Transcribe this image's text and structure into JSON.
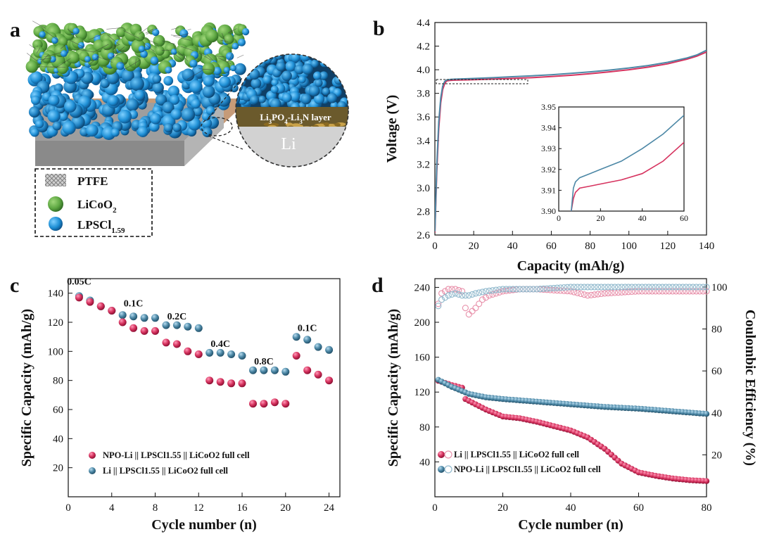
{
  "panels": {
    "a": {
      "letter": "a",
      "legend": [
        {
          "label": "PTFE",
          "sub": "",
          "icon": "ptfe-swatch"
        },
        {
          "label": "LiCoO",
          "sub": "2",
          "icon": "green-sphere"
        },
        {
          "label": "LPSCl",
          "sub": "1.59",
          "icon": "blue-sphere"
        }
      ],
      "inset_layer": {
        "p1": "Li",
        "s1": "3",
        "p2": "PO",
        "s2": "4",
        "p3": "-Li",
        "s3": "3",
        "p4": "N layer"
      },
      "inset_li": "Li",
      "colors": {
        "green": "#5fa843",
        "blue": "#1f90d6",
        "substrate": "#a8a8a8"
      }
    },
    "b": {
      "letter": "b"
    },
    "c": {
      "letter": "c"
    },
    "d": {
      "letter": "d"
    }
  },
  "chart_data": [
    {
      "id": "b",
      "type": "line",
      "xlabel": "Capacity (mAh/g)",
      "ylabel": "Voltage (V)",
      "xlim": [
        0,
        140
      ],
      "ylim": [
        2.6,
        4.4
      ],
      "xticks": [
        "0",
        "20",
        "40",
        "60",
        "80",
        "100",
        "120",
        "140"
      ],
      "yticks": [
        "2.6",
        "2.8",
        "3.0",
        "3.2",
        "3.4",
        "3.6",
        "3.8",
        "4.0",
        "4.2",
        "4.4"
      ],
      "series": [
        {
          "color": "#d6335f",
          "x": [
            0,
            1,
            2,
            3,
            4,
            5,
            6,
            8,
            10,
            20,
            30,
            40,
            50,
            60,
            70,
            80,
            90,
            100,
            110,
            120,
            130,
            135,
            140
          ],
          "y": [
            2.62,
            3.15,
            3.5,
            3.72,
            3.83,
            3.88,
            3.905,
            3.91,
            3.912,
            3.916,
            3.921,
            3.927,
            3.933,
            3.942,
            3.953,
            3.966,
            3.982,
            4.0,
            4.022,
            4.05,
            4.09,
            4.115,
            4.15
          ]
        },
        {
          "color": "#4d88a6",
          "x": [
            0,
            1,
            2,
            3,
            4,
            5,
            6,
            8,
            10,
            20,
            30,
            40,
            50,
            60,
            70,
            80,
            90,
            100,
            110,
            120,
            130,
            135,
            140
          ],
          "y": [
            2.63,
            3.2,
            3.56,
            3.76,
            3.86,
            3.9,
            3.913,
            3.918,
            3.92,
            3.926,
            3.933,
            3.941,
            3.949,
            3.958,
            3.969,
            3.982,
            3.997,
            4.015,
            4.036,
            4.063,
            4.1,
            4.125,
            4.165
          ]
        }
      ],
      "inset": {
        "xlim": [
          0,
          60
        ],
        "ylim": [
          3.9,
          3.95
        ],
        "xticks": [
          "0",
          "20",
          "40",
          "60"
        ],
        "yticks": [
          "3.90",
          "3.91",
          "3.92",
          "3.93",
          "3.94",
          "3.95"
        ],
        "series": [
          {
            "color": "#d6335f",
            "x": [
              6,
              7,
              8,
              9,
              10,
              15,
              20,
              30,
              40,
              50,
              60
            ],
            "y": [
              3.9,
              3.906,
              3.909,
              3.91,
              3.911,
              3.912,
              3.913,
              3.915,
              3.918,
              3.924,
              3.933
            ]
          },
          {
            "color": "#4d88a6",
            "x": [
              6,
              7,
              8,
              9,
              10,
              15,
              20,
              30,
              40,
              50,
              60
            ],
            "y": [
              3.9,
              3.911,
              3.914,
              3.915,
              3.916,
              3.918,
              3.92,
              3.924,
              3.93,
              3.937,
              3.946
            ]
          }
        ]
      }
    },
    {
      "id": "c",
      "type": "scatter",
      "xlabel": "Cycle number (n)",
      "ylabel": "Specific Capacity (mAh/g)",
      "xlim": [
        0,
        25
      ],
      "ylim": [
        0,
        150
      ],
      "xticks": [
        "0",
        "4",
        "8",
        "12",
        "16",
        "20",
        "24"
      ],
      "yticks": [
        "20",
        "40",
        "60",
        "80",
        "100",
        "120",
        "140"
      ],
      "rate_labels": [
        "0.05C",
        "0.1C",
        "0.2C",
        "0.4C",
        "0.8C",
        "0.1C"
      ],
      "series": [
        {
          "name": "NPO-Li || LPSCl1.55 || LiCoO2 full cell",
          "color": "#d6335f",
          "x": [
            1,
            2,
            3,
            4,
            5,
            6,
            7,
            8,
            9,
            10,
            11,
            12,
            13,
            14,
            15,
            16,
            17,
            18,
            19,
            20,
            21,
            22,
            23,
            24
          ],
          "y": [
            137,
            134,
            131,
            128,
            120,
            116,
            114,
            114,
            106,
            105,
            100,
            98,
            80,
            79,
            78,
            78,
            64,
            64,
            65,
            64,
            97,
            87,
            84,
            80
          ]
        },
        {
          "name": "Li || LPSCl1.55 || LiCoO2 full cell",
          "color": "#4d88a6",
          "x": [
            1,
            2,
            3,
            4,
            5,
            6,
            7,
            8,
            9,
            10,
            11,
            12,
            13,
            14,
            15,
            16,
            17,
            18,
            19,
            20,
            21,
            22,
            23,
            24
          ],
          "y": [
            138,
            135,
            131,
            128,
            125,
            124,
            123,
            123,
            118,
            118,
            117,
            116,
            99,
            99,
            98,
            97,
            87,
            87,
            87,
            86,
            110,
            108,
            103,
            101
          ]
        }
      ]
    },
    {
      "id": "d",
      "type": "scatter",
      "xlabel": "Cycle number (n)",
      "ylabel": "Specific Capacity (mAh/g)",
      "ylabel_right": "Coulombic Efficiency (%)",
      "xlim": [
        0,
        80
      ],
      "ylim": [
        0,
        250
      ],
      "ylim_right": [
        0,
        104
      ],
      "xticks": [
        "0",
        "20",
        "40",
        "60",
        "80"
      ],
      "yticks": [
        "40",
        "80",
        "120",
        "160",
        "200",
        "240"
      ],
      "yticks_right": [
        "20",
        "40",
        "60",
        "80",
        "100"
      ],
      "series": [
        {
          "name": "Li || LPSCl1.55 || LiCoO2 full cell",
          "color": "#d6335f",
          "kp_x": [
            1,
            5,
            8,
            9,
            10,
            15,
            20,
            25,
            30,
            35,
            40,
            45,
            50,
            55,
            60,
            65,
            70,
            75,
            80
          ],
          "kp_y": [
            133,
            128,
            125,
            112,
            110,
            100,
            92,
            90,
            86,
            81,
            76,
            68,
            55,
            38,
            28,
            24,
            21,
            19,
            18
          ]
        },
        {
          "name": "NPO-Li || LPSCl1.55 || LiCoO2 full cell",
          "color": "#4d88a6",
          "kp_x": [
            1,
            5,
            10,
            15,
            20,
            30,
            40,
            50,
            60,
            70,
            80
          ],
          "kp_y": [
            134,
            126,
            118,
            114,
            112,
            109,
            106,
            103,
            101,
            98,
            95
          ]
        }
      ],
      "ce_series": [
        {
          "color": "#e890aa",
          "kp_x": [
            1,
            2,
            4,
            6,
            8,
            9,
            10,
            12,
            14,
            16,
            18,
            20,
            25,
            30,
            40,
            45,
            50,
            60,
            70,
            80
          ],
          "kp_y": [
            92,
            97,
            99,
            99,
            98,
            90,
            87,
            90,
            94,
            96,
            97,
            98,
            99,
            99,
            98,
            96,
            97,
            98,
            98,
            98
          ]
        },
        {
          "color": "#8fb8cc",
          "kp_x": [
            1,
            2,
            4,
            6,
            8,
            10,
            12,
            15,
            20,
            30,
            40,
            50,
            60,
            70,
            80
          ],
          "kp_y": [
            91,
            94,
            96,
            97,
            96,
            96,
            97,
            98,
            99,
            99,
            100,
            100,
            100,
            100,
            100
          ]
        }
      ]
    }
  ]
}
